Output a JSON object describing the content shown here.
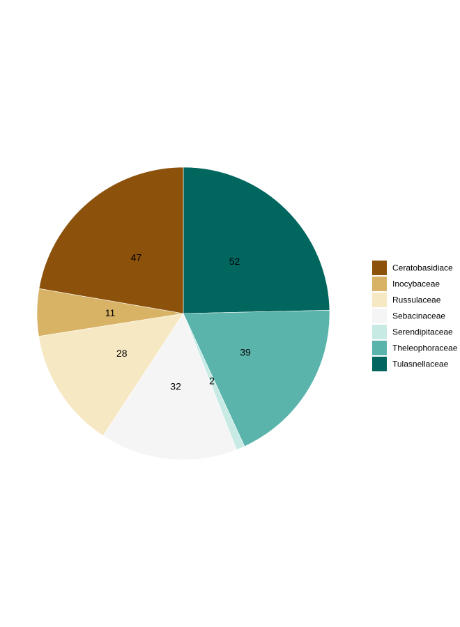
{
  "chart_data": {
    "type": "pie",
    "title": "",
    "legend": "right",
    "slices": [
      {
        "label": "Tulasnellaceae",
        "value": 52,
        "display": "52",
        "color": "#01665E"
      },
      {
        "label": "Theleophoraceae",
        "value": 39,
        "display": "39",
        "color": "#5AB4AC"
      },
      {
        "label": "Serendipitaceae",
        "value": 2,
        "display": "2",
        "color": "#C7EAE5"
      },
      {
        "label": "Sebacinaceae",
        "value": 32,
        "display": "32",
        "color": "#F5F5F5"
      },
      {
        "label": "Russulaceae",
        "value": 28,
        "display": "28",
        "color": "#F6E8C3"
      },
      {
        "label": "Inocybaceae",
        "value": 11,
        "display": "11",
        "color": "#D8B365"
      },
      {
        "label": "Ceratobasidiace",
        "value": 47,
        "display": "47",
        "color": "#8C510A"
      }
    ],
    "legend_entries": [
      {
        "label": "Ceratobasidiace",
        "color": "#8C510A"
      },
      {
        "label": "Inocybaceae",
        "color": "#D8B365"
      },
      {
        "label": "Russulaceae",
        "color": "#F6E8C3"
      },
      {
        "label": "Sebacinaceae",
        "color": "#F5F5F5"
      },
      {
        "label": "Serendipitaceae",
        "color": "#C7EAE5"
      },
      {
        "label": "Theleophoraceae",
        "color": "#5AB4AC"
      },
      {
        "label": "Tulasnellaceae",
        "color": "#01665E"
      }
    ]
  }
}
